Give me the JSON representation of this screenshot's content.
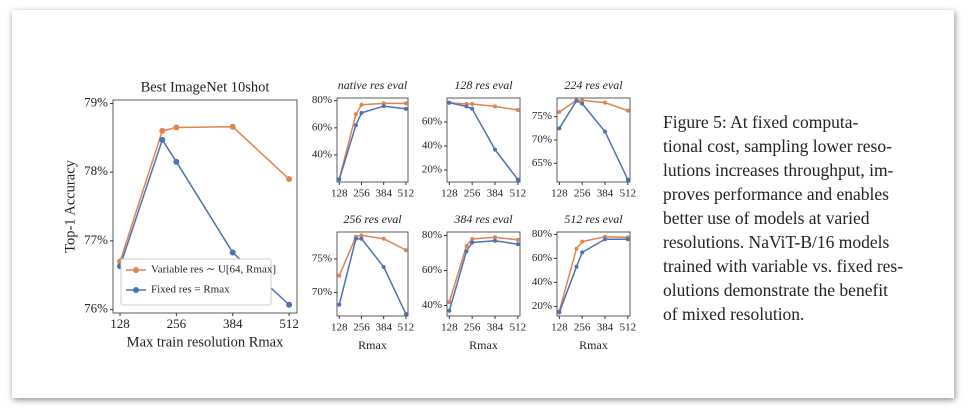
{
  "chart_data": [
    {
      "type": "line",
      "title": "Best ImageNet 10shot",
      "ylabel": "Top-1 Accuracy",
      "xlabel": "Max train resolution Rmax",
      "x": [
        128,
        224,
        256,
        384,
        512
      ],
      "xlim": [
        112,
        530
      ],
      "xticks": [
        128,
        256,
        384,
        512
      ],
      "ylim": [
        75.95,
        79.05
      ],
      "yticks": [
        {
          "value": 76,
          "label": "76%"
        },
        {
          "value": 77,
          "label": "77%"
        },
        {
          "value": 78,
          "label": "78%"
        },
        {
          "value": 79,
          "label": "79%"
        }
      ],
      "legend": "lower left",
      "series": [
        {
          "name": "Variable res ∼ U[64, Rmax]",
          "color": "#dd8452",
          "values": [
            76.7,
            78.6,
            78.65,
            78.66,
            77.9
          ]
        },
        {
          "name": "Fixed res = Rmax",
          "color": "#4c72b0",
          "values": [
            76.63,
            78.47,
            78.15,
            76.83,
            76.07
          ]
        }
      ]
    },
    {
      "type": "line",
      "title": "native res eval",
      "x": [
        128,
        224,
        256,
        384,
        512
      ],
      "xlim": [
        115,
        524
      ],
      "xticks": [
        128,
        256,
        384,
        512
      ],
      "ylim": [
        20,
        82
      ],
      "yticks": [
        {
          "value": 40,
          "label": "40%"
        },
        {
          "value": 60,
          "label": "60%"
        },
        {
          "value": 80,
          "label": "80%"
        }
      ],
      "series": [
        {
          "color": "#dd8452",
          "values": [
            22,
            70,
            77,
            78,
            78
          ]
        },
        {
          "color": "#4c72b0",
          "values": [
            22,
            62,
            71,
            76,
            74
          ]
        }
      ]
    },
    {
      "type": "line",
      "title": "128 res eval",
      "x": [
        128,
        224,
        256,
        384,
        512
      ],
      "xlim": [
        115,
        524
      ],
      "xticks": [
        128,
        256,
        384,
        512
      ],
      "ylim": [
        10,
        80
      ],
      "yticks": [
        {
          "value": 20,
          "label": "20%"
        },
        {
          "value": 40,
          "label": "40%"
        },
        {
          "value": 60,
          "label": "60%"
        }
      ],
      "series": [
        {
          "color": "#dd8452",
          "values": [
            76,
            75,
            75,
            73,
            70
          ]
        },
        {
          "color": "#4c72b0",
          "values": [
            76,
            73,
            71,
            37,
            12
          ]
        }
      ]
    },
    {
      "type": "line",
      "title": "224 res eval",
      "x": [
        128,
        224,
        256,
        384,
        512
      ],
      "xlim": [
        115,
        524
      ],
      "xticks": [
        128,
        256,
        384,
        512
      ],
      "ylim": [
        61,
        79
      ],
      "yticks": [
        {
          "value": 65,
          "label": "65%"
        },
        {
          "value": 70,
          "label": "70%"
        },
        {
          "value": 75,
          "label": "75%"
        }
      ],
      "series": [
        {
          "color": "#dd8452",
          "values": [
            76,
            78.5,
            78.5,
            78,
            76.3
          ]
        },
        {
          "color": "#4c72b0",
          "values": [
            72.5,
            78.4,
            77.8,
            71.8,
            61.5
          ]
        }
      ]
    },
    {
      "type": "line",
      "title": "256 res eval",
      "xlabel": "Rmax",
      "x": [
        128,
        224,
        256,
        384,
        512
      ],
      "xlim": [
        115,
        524
      ],
      "xticks": [
        128,
        256,
        384,
        512
      ],
      "ylim": [
        66.5,
        79
      ],
      "yticks": [
        {
          "value": 70,
          "label": "70%"
        },
        {
          "value": 75,
          "label": "75%"
        }
      ],
      "series": [
        {
          "color": "#dd8452",
          "values": [
            72.5,
            78.3,
            78.5,
            78,
            76.3
          ]
        },
        {
          "color": "#4c72b0",
          "values": [
            68.2,
            78,
            78,
            73.8,
            66.8
          ]
        }
      ]
    },
    {
      "type": "line",
      "title": "384 res eval",
      "xlabel": "Rmax",
      "x": [
        128,
        224,
        256,
        384,
        512
      ],
      "xlim": [
        115,
        524
      ],
      "xticks": [
        128,
        256,
        384,
        512
      ],
      "ylim": [
        34,
        82
      ],
      "yticks": [
        {
          "value": 40,
          "label": "40%"
        },
        {
          "value": 60,
          "label": "60%"
        },
        {
          "value": 80,
          "label": "80%"
        }
      ],
      "series": [
        {
          "color": "#dd8452",
          "values": [
            42,
            74,
            78,
            79,
            77.5
          ]
        },
        {
          "color": "#4c72b0",
          "values": [
            37,
            71,
            76,
            77,
            75
          ]
        }
      ]
    },
    {
      "type": "line",
      "title": "512 res eval",
      "xlabel": "Rmax",
      "x": [
        128,
        224,
        256,
        384,
        512
      ],
      "xlim": [
        115,
        524
      ],
      "xticks": [
        128,
        256,
        384,
        512
      ],
      "ylim": [
        12,
        82
      ],
      "yticks": [
        {
          "value": 20,
          "label": "20%"
        },
        {
          "value": 40,
          "label": "40%"
        },
        {
          "value": 60,
          "label": "60%"
        },
        {
          "value": 80,
          "label": "80%"
        }
      ],
      "series": [
        {
          "color": "#dd8452",
          "values": [
            16,
            68,
            74,
            78,
            77.5
          ]
        },
        {
          "color": "#4c72b0",
          "values": [
            15,
            53,
            65,
            76,
            76
          ]
        }
      ]
    }
  ],
  "caption": {
    "lines": [
      "Figure 5:   At fixed computa-",
      "tional cost, sampling lower reso-",
      "lutions increases throughput, im-",
      "proves performance and enables",
      "better use of models at varied",
      "resolutions. NaViT-B/16 models",
      "trained with variable vs. fixed res-",
      "olutions demonstrate the benefit",
      "of mixed resolution."
    ]
  }
}
